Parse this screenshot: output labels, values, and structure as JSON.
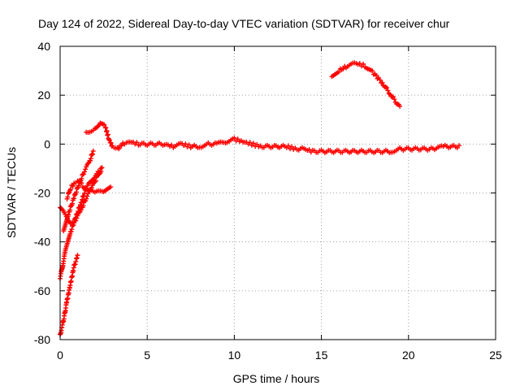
{
  "chart_data": {
    "type": "scatter",
    "title": "Day 124 of 2022, Sidereal Day-to-day VTEC variation (SDTVAR) for receiver chur",
    "xlabel": "GPS time / hours",
    "ylabel": "SDTVAR / TECUs",
    "xlim": [
      0,
      25
    ],
    "ylim": [
      -80,
      40
    ],
    "xticks": [
      0,
      5,
      10,
      15,
      20,
      25
    ],
    "yticks": [
      -80,
      -60,
      -40,
      -20,
      0,
      20,
      40
    ],
    "xtick_labels": [
      "0",
      "5",
      "10",
      "15",
      "20",
      "25"
    ],
    "ytick_labels": [
      "-80",
      "-60",
      "-40",
      "-20",
      "0",
      "20",
      "40"
    ],
    "grid": true,
    "marker": "+",
    "color": "#ff0000",
    "series": [
      {
        "name": "main-track",
        "points": [
          [
            1.5,
            5
          ],
          [
            2.0,
            6
          ],
          [
            2.3,
            9
          ],
          [
            2.6,
            7
          ],
          [
            2.8,
            2
          ],
          [
            3.0,
            -1
          ],
          [
            3.3,
            -2
          ],
          [
            3.6,
            0
          ],
          [
            4.0,
            1
          ],
          [
            4.5,
            0
          ],
          [
            5.0,
            0
          ],
          [
            5.5,
            0
          ],
          [
            6.0,
            0
          ],
          [
            6.5,
            -1
          ],
          [
            7.0,
            0
          ],
          [
            7.5,
            -1
          ],
          [
            8.0,
            -1
          ],
          [
            8.5,
            0
          ],
          [
            9.0,
            0
          ],
          [
            9.5,
            1
          ],
          [
            10.0,
            2
          ],
          [
            10.5,
            1
          ],
          [
            11.0,
            0
          ],
          [
            11.5,
            -1
          ],
          [
            12.0,
            -1
          ],
          [
            12.5,
            -1
          ],
          [
            13.0,
            -1
          ],
          [
            13.5,
            -2
          ],
          [
            14.0,
            -2
          ],
          [
            14.5,
            -3
          ],
          [
            15.0,
            -3
          ],
          [
            15.5,
            -3
          ],
          [
            16.0,
            -3
          ],
          [
            16.5,
            -3
          ],
          [
            17.0,
            -3
          ],
          [
            17.5,
            -3
          ],
          [
            18.0,
            -3
          ],
          [
            18.5,
            -3
          ],
          [
            19.0,
            -3
          ],
          [
            19.5,
            -2
          ],
          [
            20.0,
            -2
          ],
          [
            20.5,
            -2
          ],
          [
            21.0,
            -2
          ],
          [
            21.5,
            -2
          ],
          [
            22.0,
            -1
          ],
          [
            22.5,
            -1
          ],
          [
            22.9,
            -1
          ]
        ]
      },
      {
        "name": "arc-track",
        "points": [
          [
            15.6,
            28
          ],
          [
            16.0,
            30
          ],
          [
            16.5,
            32
          ],
          [
            17.0,
            33
          ],
          [
            17.5,
            32
          ],
          [
            18.0,
            29
          ],
          [
            18.5,
            25
          ],
          [
            19.0,
            20
          ],
          [
            19.5,
            15
          ]
        ]
      },
      {
        "name": "early-track-a",
        "points": [
          [
            0.0,
            -78
          ],
          [
            0.2,
            -72
          ],
          [
            0.4,
            -64
          ],
          [
            0.6,
            -57
          ],
          [
            0.8,
            -50
          ],
          [
            1.0,
            -46
          ]
        ]
      },
      {
        "name": "early-track-b",
        "points": [
          [
            0.0,
            -55
          ],
          [
            0.3,
            -44
          ],
          [
            0.6,
            -36
          ],
          [
            0.9,
            -30
          ],
          [
            1.2,
            -24
          ],
          [
            1.5,
            -18
          ],
          [
            1.8,
            -15
          ],
          [
            2.1,
            -12
          ],
          [
            2.4,
            -10
          ]
        ]
      },
      {
        "name": "early-track-c",
        "points": [
          [
            0.0,
            -26
          ],
          [
            0.3,
            -29
          ],
          [
            0.6,
            -32
          ],
          [
            0.9,
            -31
          ],
          [
            1.2,
            -27
          ],
          [
            1.5,
            -22
          ],
          [
            1.8,
            -18
          ],
          [
            2.1,
            -14
          ],
          [
            2.4,
            -10
          ]
        ]
      },
      {
        "name": "early-track-d",
        "points": [
          [
            0.4,
            -22
          ],
          [
            0.6,
            -18
          ],
          [
            0.8,
            -16
          ],
          [
            1.0,
            -15
          ],
          [
            1.3,
            -17
          ],
          [
            1.6,
            -19
          ],
          [
            2.0,
            -20
          ],
          [
            2.5,
            -19
          ],
          [
            2.9,
            -17
          ]
        ]
      },
      {
        "name": "early-track-e",
        "points": [
          [
            0.2,
            -36
          ],
          [
            0.5,
            -28
          ],
          [
            0.8,
            -22
          ],
          [
            1.1,
            -16
          ],
          [
            1.4,
            -11
          ],
          [
            1.7,
            -7
          ],
          [
            1.9,
            -3
          ]
        ]
      }
    ]
  }
}
